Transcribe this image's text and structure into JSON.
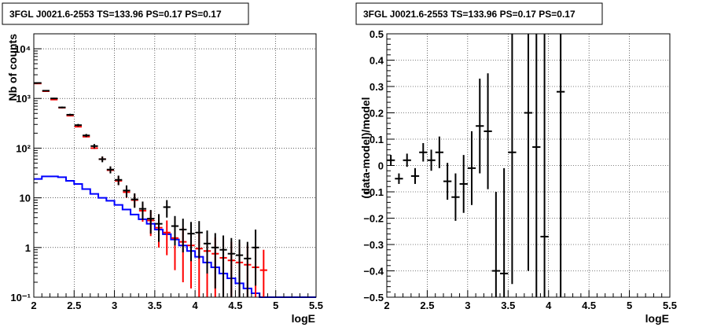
{
  "chart_data": [
    {
      "type": "histogram",
      "title": "3FGL J0021.6-2553 TS=133.96 PS=0.17 PS=0.17",
      "xlabel": "logE",
      "ylabel": "Nb of counts",
      "xlim": [
        2,
        5.5
      ],
      "ylim": [
        0.1,
        20000
      ],
      "yscale": "log",
      "grid": true,
      "xticks": [
        "2",
        "2.5",
        "3",
        "3.5",
        "4",
        "4.5",
        "5",
        "5.5"
      ],
      "yticks": [
        {
          "v": 0.1,
          "label": "10⁻¹"
        },
        {
          "v": 1,
          "label": "1"
        },
        {
          "v": 10,
          "label": "10"
        },
        {
          "v": 100,
          "label": "10²"
        },
        {
          "v": 1000,
          "label": "10³"
        },
        {
          "v": 10000,
          "label": "10⁴"
        }
      ],
      "bin_width": 0.1,
      "series": [
        {
          "color": "#0000ff",
          "kind": "step",
          "x": [
            2.0,
            2.1,
            2.2,
            2.3,
            2.4,
            2.5,
            2.6,
            2.7,
            2.8,
            2.9,
            3.0,
            3.1,
            3.2,
            3.3,
            3.4,
            3.5,
            3.6,
            3.7,
            3.8,
            3.9,
            4.0,
            4.1,
            4.2,
            4.3,
            4.4,
            4.5,
            4.6,
            4.7,
            4.8,
            4.9,
            5.0,
            5.1,
            5.2,
            5.3,
            5.4
          ],
          "values": [
            24,
            27,
            27,
            26,
            22,
            19,
            15,
            12,
            10,
            8.7,
            7.2,
            5.8,
            4.6,
            3.7,
            3.0,
            2.3,
            1.85,
            1.45,
            1.1,
            0.85,
            0.65,
            0.5,
            0.4,
            0.3,
            0.24,
            0.19,
            0.15,
            0.12,
            0.1,
            0.1,
            0.1,
            0.1,
            0.1,
            0.1,
            0.1
          ]
        },
        {
          "color": "#ff0000",
          "kind": "errorbar",
          "x": [
            2.05,
            2.15,
            2.25,
            2.35,
            2.45,
            2.55,
            2.65,
            2.75,
            2.85,
            2.95,
            3.05,
            3.15,
            3.25,
            3.35,
            3.45,
            3.55,
            3.65,
            3.75,
            3.85,
            3.95,
            4.05,
            4.15,
            4.25,
            4.35,
            4.45,
            4.55,
            4.65,
            4.75,
            4.85
          ],
          "y": [
            2000,
            1400,
            950,
            650,
            450,
            270,
            170,
            100,
            60,
            36,
            22,
            13,
            9,
            5.5,
            3.5,
            2.5,
            2.0,
            1.55,
            1.3,
            1.1,
            0.95,
            0.85,
            0.75,
            0.62,
            0.55,
            0.5,
            0.45,
            0.4,
            0.35
          ],
          "yerr_low": [
            2,
            2,
            2,
            2,
            2,
            2,
            2,
            4,
            4,
            4,
            4,
            3,
            2.5,
            2.2,
            1.8,
            1.5,
            1.3,
            1.2,
            1.1,
            0.95,
            0.85,
            0.75,
            0.65,
            0.6,
            0.53,
            0.5,
            0.45,
            0.4,
            0.35
          ],
          "yerr_high": [
            40,
            35,
            30,
            25,
            20,
            15,
            12,
            10,
            8,
            6,
            5,
            4,
            3,
            2.5,
            2,
            1.8,
            1.5,
            1.3,
            1.2,
            1.1,
            1.0,
            0.95,
            0.85,
            0.8,
            0.75,
            0.7,
            0.65,
            0.6,
            0.55
          ]
        },
        {
          "color": "#000000",
          "kind": "errorbar",
          "x": [
            2.05,
            2.15,
            2.25,
            2.35,
            2.45,
            2.55,
            2.65,
            2.75,
            2.85,
            2.95,
            3.05,
            3.15,
            3.25,
            3.35,
            3.45,
            3.55,
            3.65,
            3.75,
            3.85,
            3.95,
            4.05,
            4.15,
            4.25,
            4.35,
            4.45,
            4.55,
            4.65,
            4.75
          ],
          "y": [
            2050,
            1430,
            1000,
            660,
            470,
            290,
            180,
            110,
            60,
            37,
            23,
            14,
            9.3,
            6.0,
            3.8,
            3.0,
            6.5,
            2.7,
            2.3,
            1.9,
            2.0,
            1.2,
            1.0,
            0.9,
            0.75,
            0.7,
            0.6,
            1.0
          ],
          "yerr_low": [
            45,
            38,
            32,
            26,
            22,
            17,
            13,
            11,
            8,
            6,
            5,
            3.8,
            3,
            2.4,
            1.9,
            1.7,
            2.5,
            1.6,
            1.5,
            1.37,
            1.4,
            0.9,
            0.85,
            0.8,
            0.7,
            0.67,
            0.58,
            0.83
          ],
          "yerr_high": [
            45,
            38,
            32,
            26,
            22,
            17,
            13,
            11,
            8,
            6,
            5,
            3.8,
            3,
            2.4,
            1.9,
            1.7,
            2.5,
            1.6,
            1.5,
            1.37,
            1.4,
            1.0,
            0.95,
            0.85,
            0.8,
            0.75,
            0.7,
            1.3
          ]
        }
      ]
    },
    {
      "type": "scatter",
      "title": "3FGL J0021.6-2553 TS=133.96 PS=0.17 PS=0.17",
      "xlabel": "logE",
      "ylabel": "(data-model)/model",
      "xlim": [
        2,
        5.5
      ],
      "ylim": [
        -0.5,
        0.5
      ],
      "grid": true,
      "xticks": [
        "2",
        "2.5",
        "3",
        "3.5",
        "4",
        "4.5",
        "5",
        "5.5"
      ],
      "yticks": [
        "−0.5",
        "−0.4",
        "−0.3",
        "−0.2",
        "−0.1",
        "0",
        "0.1",
        "0.2",
        "0.3",
        "0.4",
        "0.5"
      ],
      "series": [
        {
          "color": "#000000",
          "x": [
            2.05,
            2.15,
            2.25,
            2.35,
            2.45,
            2.55,
            2.65,
            2.75,
            2.85,
            2.95,
            3.05,
            3.15,
            3.25,
            3.35,
            3.45,
            3.55,
            3.75,
            3.85,
            3.95,
            4.15
          ],
          "y": [
            0.02,
            -0.05,
            0.02,
            -0.04,
            0.05,
            0.02,
            0.05,
            -0.06,
            -0.12,
            -0.07,
            -0.01,
            0.15,
            0.13,
            -0.4,
            -0.41,
            0.05,
            0.2,
            0.07,
            -0.27,
            0.28
          ],
          "yerr": [
            0.02,
            0.02,
            0.025,
            0.03,
            0.035,
            0.04,
            0.06,
            0.07,
            0.09,
            0.11,
            0.14,
            0.18,
            0.22,
            0.3,
            0.4,
            0.5,
            0.6,
            0.7,
            0.8,
            0.9
          ]
        }
      ]
    }
  ]
}
